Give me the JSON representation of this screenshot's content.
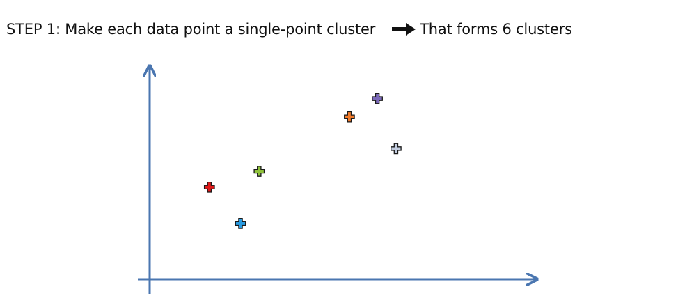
{
  "heading": {
    "step_label": "STEP 1",
    "instruction": ": Make each data point a single-point cluster",
    "result": "That forms 6 clusters"
  },
  "icons": {
    "arrow": "right-arrow-icon",
    "point_marker": "plus-icon"
  },
  "colors": {
    "axis": "#4a76b0",
    "marker_outline": "#1a1a1a",
    "text": "#111111"
  },
  "chart_data": {
    "type": "scatter",
    "title": "",
    "xlabel": "",
    "ylabel": "",
    "grid": false,
    "axes_ticks": false,
    "points": [
      {
        "x": 1.0,
        "y": 3.9,
        "color": "#e11919"
      },
      {
        "x": 2.0,
        "y": 2.3,
        "color": "#2a9be0"
      },
      {
        "x": 2.6,
        "y": 4.6,
        "color": "#8fc23a"
      },
      {
        "x": 5.5,
        "y": 7.0,
        "color": "#f07a2a"
      },
      {
        "x": 6.4,
        "y": 7.8,
        "color": "#7a68b8"
      },
      {
        "x": 7.0,
        "y": 5.6,
        "color": "#c3cde0"
      }
    ],
    "xlim": [
      -1.3,
      11.5
    ],
    "ylim": [
      -0.8,
      9.2
    ]
  }
}
